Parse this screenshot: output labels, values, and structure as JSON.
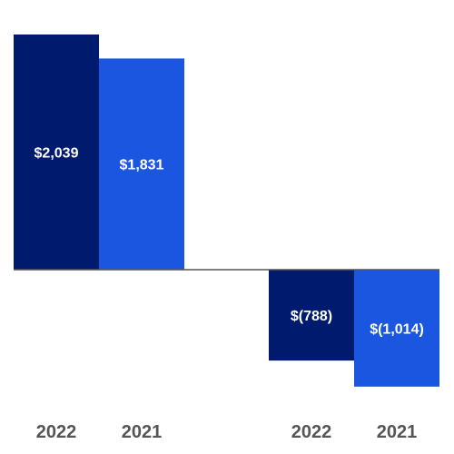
{
  "chart_data": {
    "type": "bar",
    "categories": [
      "2022",
      "2021",
      "2022",
      "2021"
    ],
    "values": [
      2039,
      1831,
      -788,
      -1014
    ],
    "data_labels": [
      "$2,039",
      "$1,831",
      "$(788)",
      "$(1,014)"
    ],
    "colors": [
      "#001a6e",
      "#1a56e0",
      "#001a6e",
      "#1a56e0"
    ],
    "baseline_color": "#555555",
    "label_color": "#555555",
    "grid": false,
    "title": "",
    "xlabel": "",
    "ylabel": ""
  }
}
